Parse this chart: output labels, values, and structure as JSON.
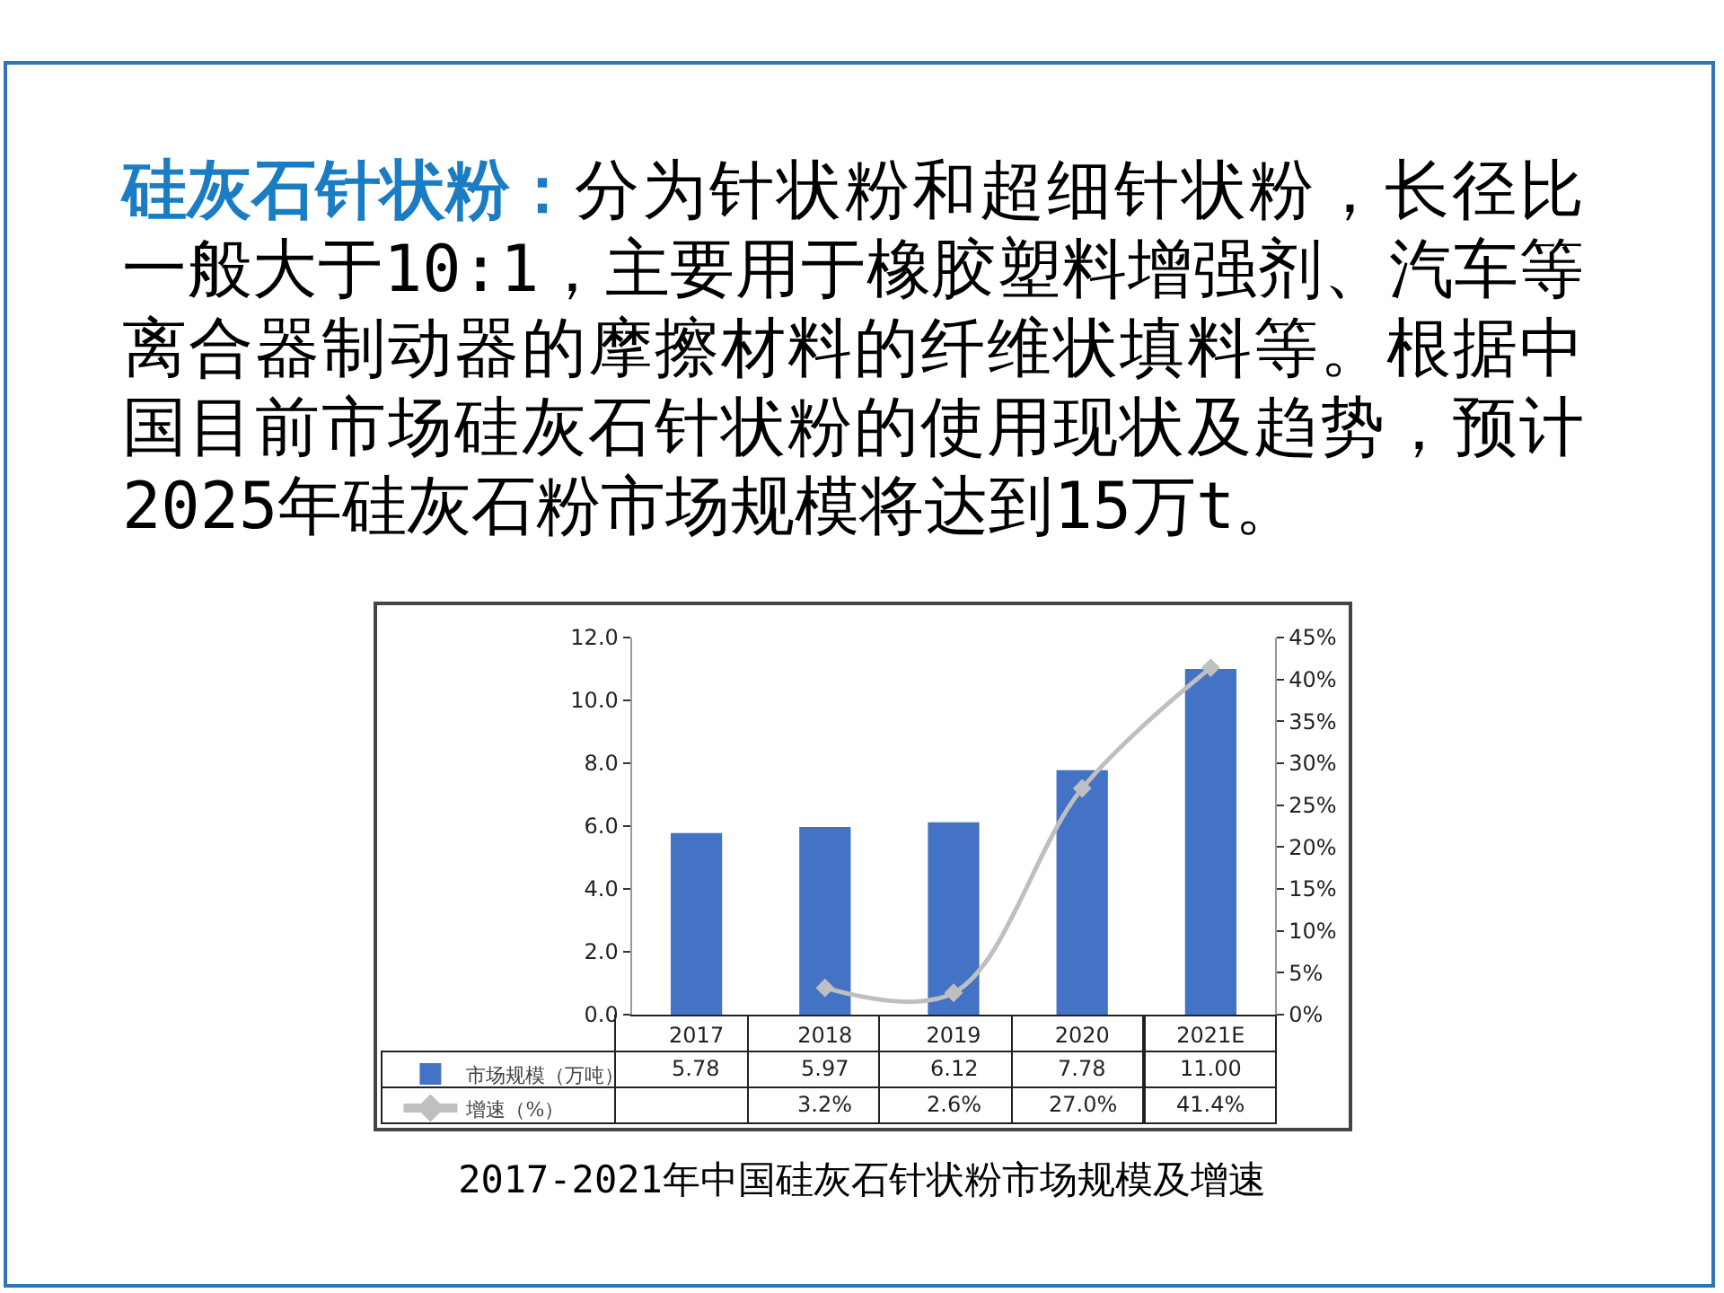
{
  "chart_data": {
    "type": "bar",
    "title": "2017-2021年中国硅灰石针状粉市场规模及增速",
    "annotations": [
      "硅灰石针状粉：",
      "分为针状粉和超细针状粉，长径比",
      "一般大于10:1，主要用于橡胶塑料增强剂、汽车等离合器制动器的摩擦材料的纤维状填料等。根据中国目前市场硅灰石针状粉的使用现状及趋势，预计2025年硅灰石粉市场规模将达到15万t。"
    ],
    "categories": [
      "2017",
      "2018",
      "2019",
      "2020",
      "2021E"
    ],
    "series": [
      {
        "name": "市场规模（万吨）",
        "color": "#4472c4",
        "values": [
          5.78,
          5.97,
          6.12,
          7.78,
          11.0
        ],
        "value_labels": [
          "5.78",
          "5.97",
          "6.12",
          "7.78",
          "11.00"
        ]
      },
      {
        "name": "增速（%）",
        "type": "line",
        "axis": "y2",
        "color": "#bfbfbf",
        "marker": "diamond",
        "line_style": "solid",
        "values": [
          null,
          3.2,
          2.6,
          27.0,
          41.4
        ],
        "value_labels": [
          null,
          "3.2%",
          "2.6%",
          "27.0%",
          "41.4%"
        ]
      }
    ],
    "ylim": [
      0,
      12
    ],
    "yticks": [
      {
        "value": 0,
        "label": "0.0"
      },
      {
        "value": 2,
        "label": "2.0"
      },
      {
        "value": 4,
        "label": "4.0"
      },
      {
        "value": 6,
        "label": "6.0"
      },
      {
        "value": 8,
        "label": "8.0"
      },
      {
        "value": 10,
        "label": "10.0"
      },
      {
        "value": 12,
        "label": "12.0"
      }
    ],
    "y2lim": [
      0,
      45
    ],
    "y2ticks": [
      {
        "value": 0,
        "label": "0%"
      },
      {
        "value": 5,
        "label": "5%"
      },
      {
        "value": 10,
        "label": "10%"
      },
      {
        "value": 15,
        "label": "15%"
      },
      {
        "value": 20,
        "label": "20%"
      },
      {
        "value": 25,
        "label": "25%"
      },
      {
        "value": 30,
        "label": "30%"
      },
      {
        "value": 35,
        "label": "35%"
      },
      {
        "value": 40,
        "label": "40%"
      },
      {
        "value": 45,
        "label": "45%"
      }
    ],
    "grid": false,
    "legend": "bottom left"
  }
}
